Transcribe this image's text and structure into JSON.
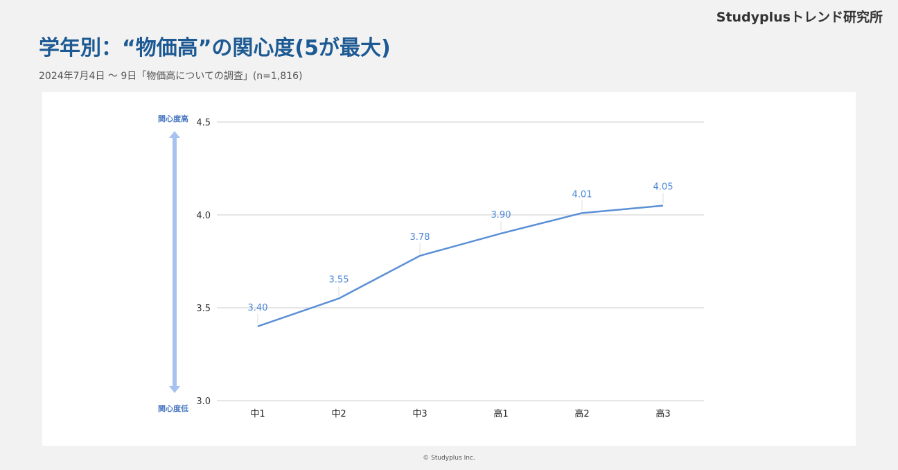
{
  "brand": "Studyplusトレンド研究所",
  "title": "学年別：“物価高”の関心度(5が最大)",
  "subtitle": "2024年7月4日 〜 9日「物価高についての調査」(n=1,816)",
  "footer": "© Studyplus Inc.",
  "colors": {
    "title": "#1d5a93",
    "line": "#5b8fd6",
    "arrow": "#a8c2f0",
    "grid": "#cccccc"
  },
  "chart_data": {
    "type": "line",
    "title": "",
    "xlabel": "",
    "ylabel": "",
    "categories": [
      "中1",
      "中2",
      "中3",
      "高1",
      "高2",
      "高3"
    ],
    "series": [
      {
        "values": [
          3.4,
          3.55,
          3.78,
          3.9,
          4.01,
          4.05
        ],
        "labels": [
          "3.40",
          "3.55",
          "3.78",
          "3.90",
          "4.01",
          "4.05"
        ]
      }
    ],
    "ylim": [
      3.0,
      4.5
    ],
    "yticks": [
      "3.0",
      "3.5",
      "4.0",
      "4.5"
    ],
    "grid": true,
    "annotations": {
      "high": "関心度高",
      "low": "関心度低"
    }
  }
}
